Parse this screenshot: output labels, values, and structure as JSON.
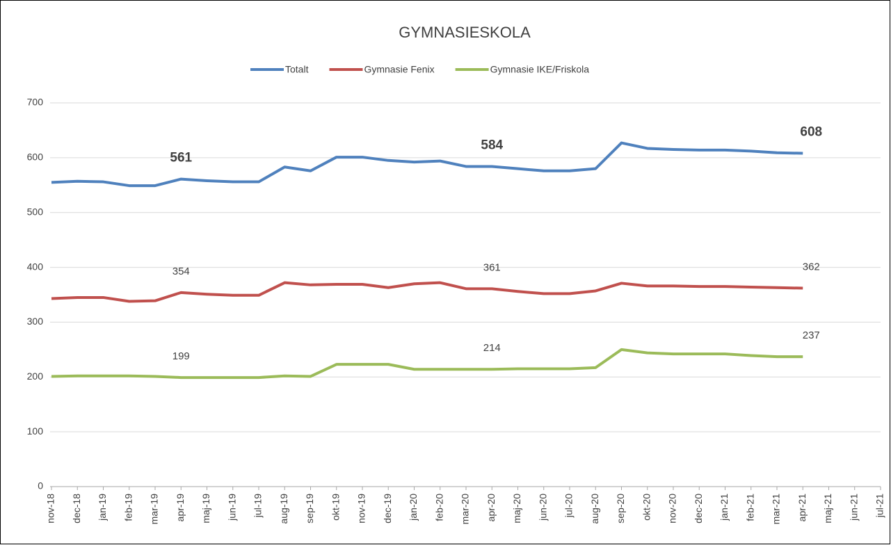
{
  "chart_data": {
    "type": "line",
    "title": "GYMNASIESKOLA",
    "categories": [
      "nov-18",
      "dec-18",
      "jan-19",
      "feb-19",
      "mar-19",
      "apr-19",
      "maj-19",
      "jun-19",
      "jul-19",
      "aug-19",
      "sep-19",
      "okt-19",
      "nov-19",
      "dec-19",
      "jan-20",
      "feb-20",
      "mar-20",
      "apr-20",
      "maj-20",
      "jun-20",
      "jul-20",
      "aug-20",
      "sep-20",
      "okt-20",
      "nov-20",
      "dec-20",
      "jan-21",
      "feb-21",
      "mar-21",
      "apr-21",
      "maj-21",
      "jun-21",
      "jul-21"
    ],
    "series": [
      {
        "name": "Totalt",
        "color": "#4f81bd",
        "values": [
          555,
          557,
          556,
          549,
          549,
          561,
          558,
          556,
          556,
          583,
          576,
          601,
          601,
          595,
          592,
          594,
          584,
          584,
          580,
          576,
          576,
          580,
          627,
          617,
          615,
          614,
          614,
          612,
          609,
          608,
          null,
          null,
          null
        ]
      },
      {
        "name": "Gymnasie Fenix",
        "color": "#c0504d",
        "values": [
          343,
          345,
          345,
          338,
          339,
          354,
          351,
          349,
          349,
          372,
          368,
          369,
          369,
          363,
          370,
          372,
          361,
          361,
          356,
          352,
          352,
          357,
          371,
          366,
          366,
          365,
          365,
          364,
          363,
          362,
          null,
          null,
          null
        ]
      },
      {
        "name": "Gymnasie IKE/Friskola",
        "color": "#9bbb59",
        "values": [
          201,
          202,
          202,
          202,
          201,
          199,
          199,
          199,
          199,
          202,
          201,
          223,
          223,
          223,
          214,
          214,
          214,
          214,
          215,
          215,
          215,
          217,
          250,
          244,
          242,
          242,
          242,
          239,
          237,
          237,
          null,
          null,
          null
        ]
      }
    ],
    "labeled_points": [
      5,
      17,
      29
    ],
    "ylim": [
      0,
      700
    ],
    "yticks": [
      0,
      100,
      200,
      300,
      400,
      500,
      600,
      700
    ],
    "grid": true,
    "legend": "top"
  }
}
